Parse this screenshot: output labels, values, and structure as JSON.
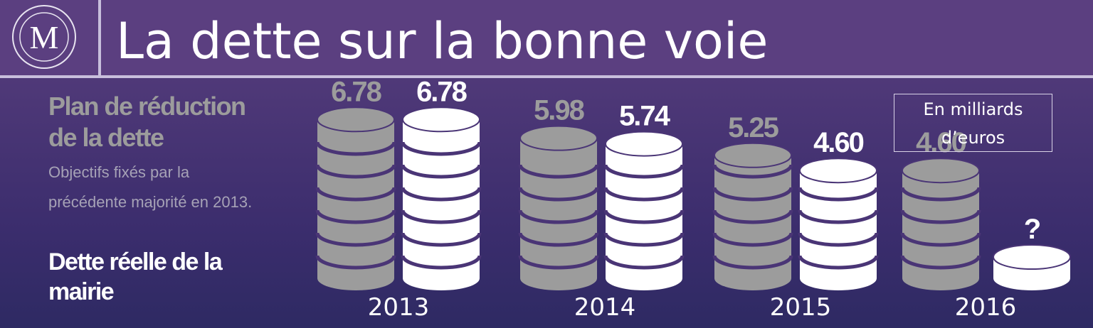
{
  "logo": "M",
  "chart_data": {
    "type": "coin-stacks",
    "title": "La dette sur la bonne voie",
    "note": "Objectifs fixés par la précédente majorité en 2013.",
    "unit": "En milliards d’euros",
    "categories": [
      "2013",
      "2014",
      "2015",
      "2016"
    ],
    "series": [
      {
        "name": "Plan de réduction de la dette",
        "color": "#9c9c9c",
        "values": [
          6.78,
          5.98,
          5.25,
          4.6
        ],
        "value_labels": [
          "6.78",
          "5.98",
          "5.25",
          "4.60"
        ]
      },
      {
        "name": "Dette réelle de la mairie",
        "color": "#ffffff",
        "values": [
          6.78,
          5.74,
          4.6,
          null
        ],
        "value_labels": [
          "6.78",
          "5.74",
          "4.60",
          "?"
        ]
      }
    ]
  }
}
